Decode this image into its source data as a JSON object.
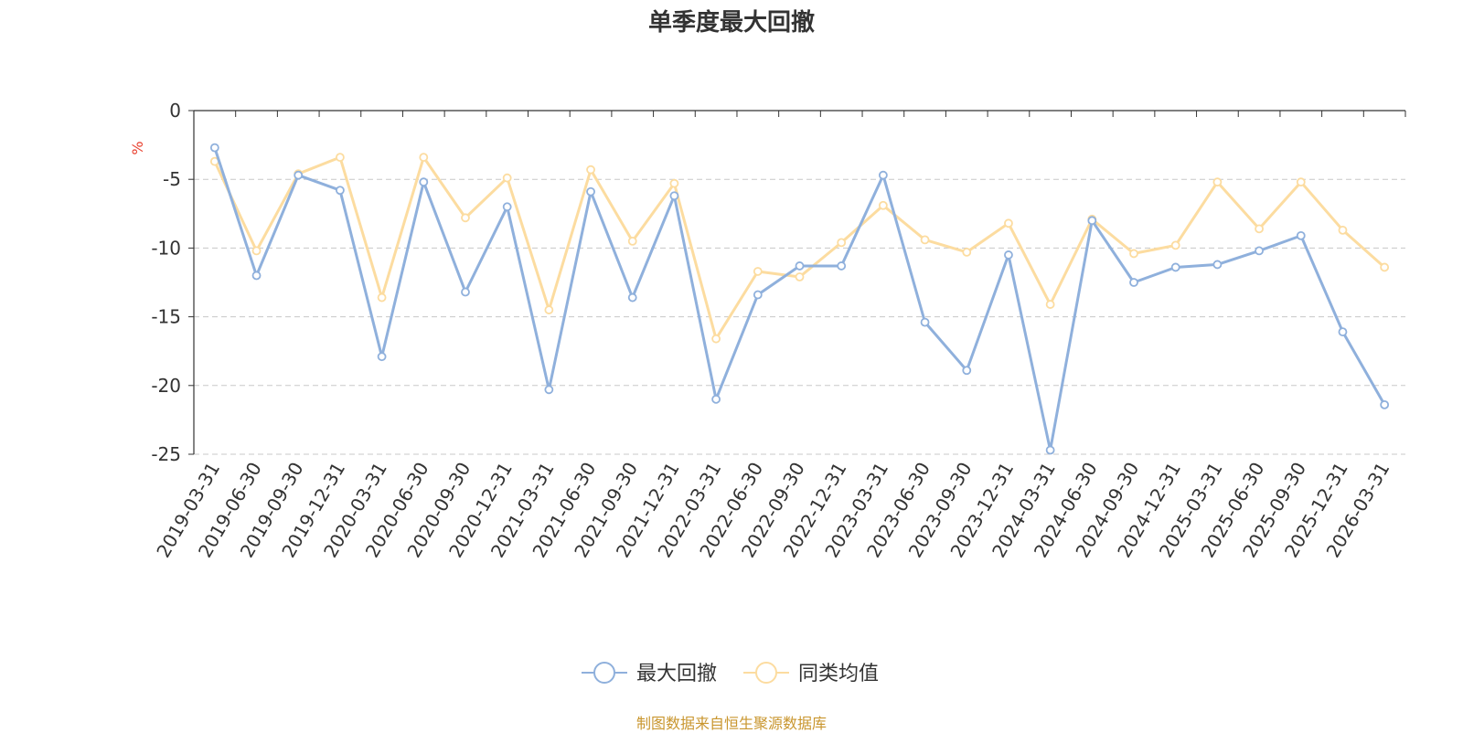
{
  "chart_data": {
    "type": "line",
    "title": "单季度最大回撤",
    "ylabel": "%",
    "ylim": [
      -25,
      0
    ],
    "yticks": [
      0,
      -5,
      -10,
      -15,
      -20,
      -25
    ],
    "grid": true,
    "legend_position": "bottom",
    "x": [
      "2019-03-31",
      "2019-06-30",
      "2019-09-30",
      "2019-12-31",
      "2020-03-31",
      "2020-06-30",
      "2020-09-30",
      "2020-12-31",
      "2021-03-31",
      "2021-06-30",
      "2021-09-30",
      "2021-12-31",
      "2022-03-31",
      "2022-06-30",
      "2022-09-30",
      "2022-12-31",
      "2023-03-31",
      "2023-06-30",
      "2023-09-30",
      "2023-12-31",
      "2024-03-31",
      "2024-06-30",
      "2024-09-30",
      "2024-12-31",
      "2025-03-31",
      "2025-06-30",
      "2025-09-30",
      "2025-12-31",
      "2026-03-31"
    ],
    "series": [
      {
        "name": "最大回撤",
        "color": "#8fb0dc",
        "values": [
          -2.7,
          -12.0,
          -4.7,
          -5.8,
          -17.9,
          -5.2,
          -13.2,
          -7.0,
          -20.3,
          -5.9,
          -13.6,
          -6.2,
          -21.0,
          -13.4,
          -11.3,
          -11.3,
          -4.7,
          -15.4,
          -18.9,
          -10.5,
          -24.7,
          -8.0,
          -12.5,
          -11.4,
          -11.2,
          -10.2,
          -9.1,
          -16.1,
          -21.4
        ]
      },
      {
        "name": "同类均值",
        "color": "#fcdca0",
        "values": [
          -3.7,
          -10.2,
          -4.6,
          -3.4,
          -13.6,
          -3.4,
          -7.8,
          -4.9,
          -14.5,
          -4.3,
          -9.5,
          -5.3,
          -16.6,
          -11.7,
          -12.1,
          -9.6,
          -6.9,
          -9.4,
          -10.3,
          -8.2,
          -14.1,
          -7.9,
          -10.4,
          -9.8,
          -5.2,
          -8.6,
          -5.2,
          -8.7,
          -11.4
        ]
      }
    ],
    "source": "制图数据来自恒生聚源数据库"
  }
}
